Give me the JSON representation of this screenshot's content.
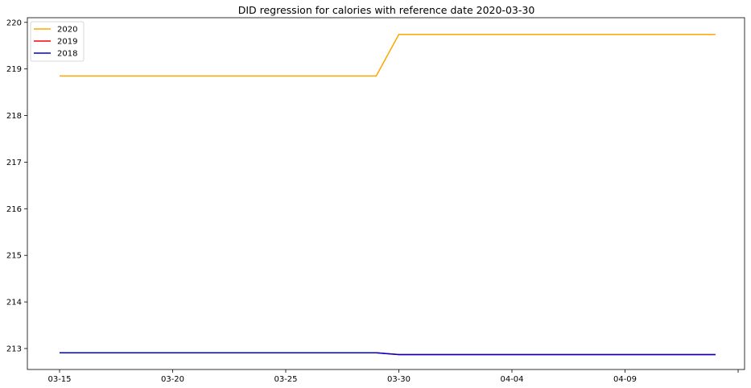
{
  "chart_data": {
    "type": "line",
    "title": "DID regression for calories with reference date 2020-03-30",
    "xlabel": "",
    "ylabel": "",
    "x": [
      "03-15",
      "03-16",
      "03-17",
      "03-18",
      "03-19",
      "03-20",
      "03-21",
      "03-22",
      "03-23",
      "03-24",
      "03-25",
      "03-26",
      "03-27",
      "03-28",
      "03-29",
      "03-30",
      "03-31",
      "04-01",
      "04-02",
      "04-03",
      "04-04",
      "04-05",
      "04-06",
      "04-07",
      "04-08",
      "04-09",
      "04-10",
      "04-11",
      "04-12",
      "04-13"
    ],
    "x_ticks": [
      "03-15",
      "03-20",
      "03-25",
      "03-30",
      "04-04",
      "04-09"
    ],
    "y_ticks": [
      213,
      214,
      215,
      216,
      217,
      218,
      219,
      220
    ],
    "ylim": [
      212.55,
      220.1
    ],
    "grid": false,
    "legend_position": "top-left",
    "series": [
      {
        "name": "2020",
        "color": "#FFA500",
        "values": [
          218.85,
          218.85,
          218.85,
          218.85,
          218.85,
          218.85,
          218.85,
          218.85,
          218.85,
          218.85,
          218.85,
          218.85,
          218.85,
          218.85,
          218.85,
          219.74,
          219.74,
          219.74,
          219.74,
          219.74,
          219.74,
          219.74,
          219.74,
          219.74,
          219.74,
          219.74,
          219.74,
          219.74,
          219.74,
          219.74
        ]
      },
      {
        "name": "2019",
        "color": "#FF0000",
        "values": [
          212.91,
          212.91,
          212.91,
          212.91,
          212.91,
          212.91,
          212.91,
          212.91,
          212.91,
          212.91,
          212.91,
          212.91,
          212.91,
          212.91,
          212.91,
          212.87,
          212.87,
          212.87,
          212.87,
          212.87,
          212.87,
          212.87,
          212.87,
          212.87,
          212.87,
          212.87,
          212.87,
          212.87,
          212.87,
          212.87
        ]
      },
      {
        "name": "2018",
        "color": "#0000CD",
        "values": [
          212.91,
          212.91,
          212.91,
          212.91,
          212.91,
          212.91,
          212.91,
          212.91,
          212.91,
          212.91,
          212.91,
          212.91,
          212.91,
          212.91,
          212.91,
          212.87,
          212.87,
          212.87,
          212.87,
          212.87,
          212.87,
          212.87,
          212.87,
          212.87,
          212.87,
          212.87,
          212.87,
          212.87,
          212.87,
          212.87
        ]
      }
    ]
  }
}
